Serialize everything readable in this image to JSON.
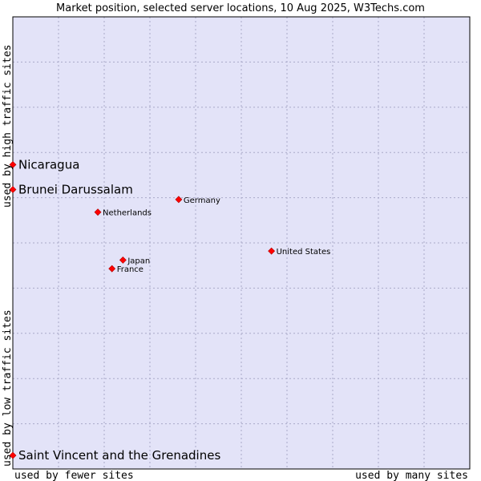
{
  "chart_data": {
    "type": "scatter",
    "title": "Market position, selected server locations, 10 Aug 2025, W3Techs.com",
    "xlabel_low": "used by fewer sites",
    "xlabel_high": "used by many sites",
    "ylabel_low": "used by low traffic sites",
    "ylabel_high": "used by high traffic sites",
    "xlim": [
      0,
      1
    ],
    "ylim": [
      0,
      1
    ],
    "grid": true,
    "colors": {
      "plot_bg": "#e3e3f8",
      "grid": "#a9a9c8",
      "marker": "#ff0000",
      "marker_edge": "#b00000"
    },
    "points": [
      {
        "label": "Nicaragua",
        "x": 0.0,
        "y": 0.673,
        "emphasis": true
      },
      {
        "label": "Brunei Darussalam",
        "x": 0.0,
        "y": 0.618,
        "emphasis": true
      },
      {
        "label": "Saint Vincent and the Grenadines",
        "x": 0.0,
        "y": 0.03,
        "emphasis": true
      },
      {
        "label": "Germany",
        "x": 0.363,
        "y": 0.596,
        "emphasis": false
      },
      {
        "label": "Netherlands",
        "x": 0.186,
        "y": 0.568,
        "emphasis": false
      },
      {
        "label": "United States",
        "x": 0.566,
        "y": 0.482,
        "emphasis": false
      },
      {
        "label": "Japan",
        "x": 0.241,
        "y": 0.462,
        "emphasis": false
      },
      {
        "label": "France",
        "x": 0.217,
        "y": 0.443,
        "emphasis": false
      }
    ]
  }
}
